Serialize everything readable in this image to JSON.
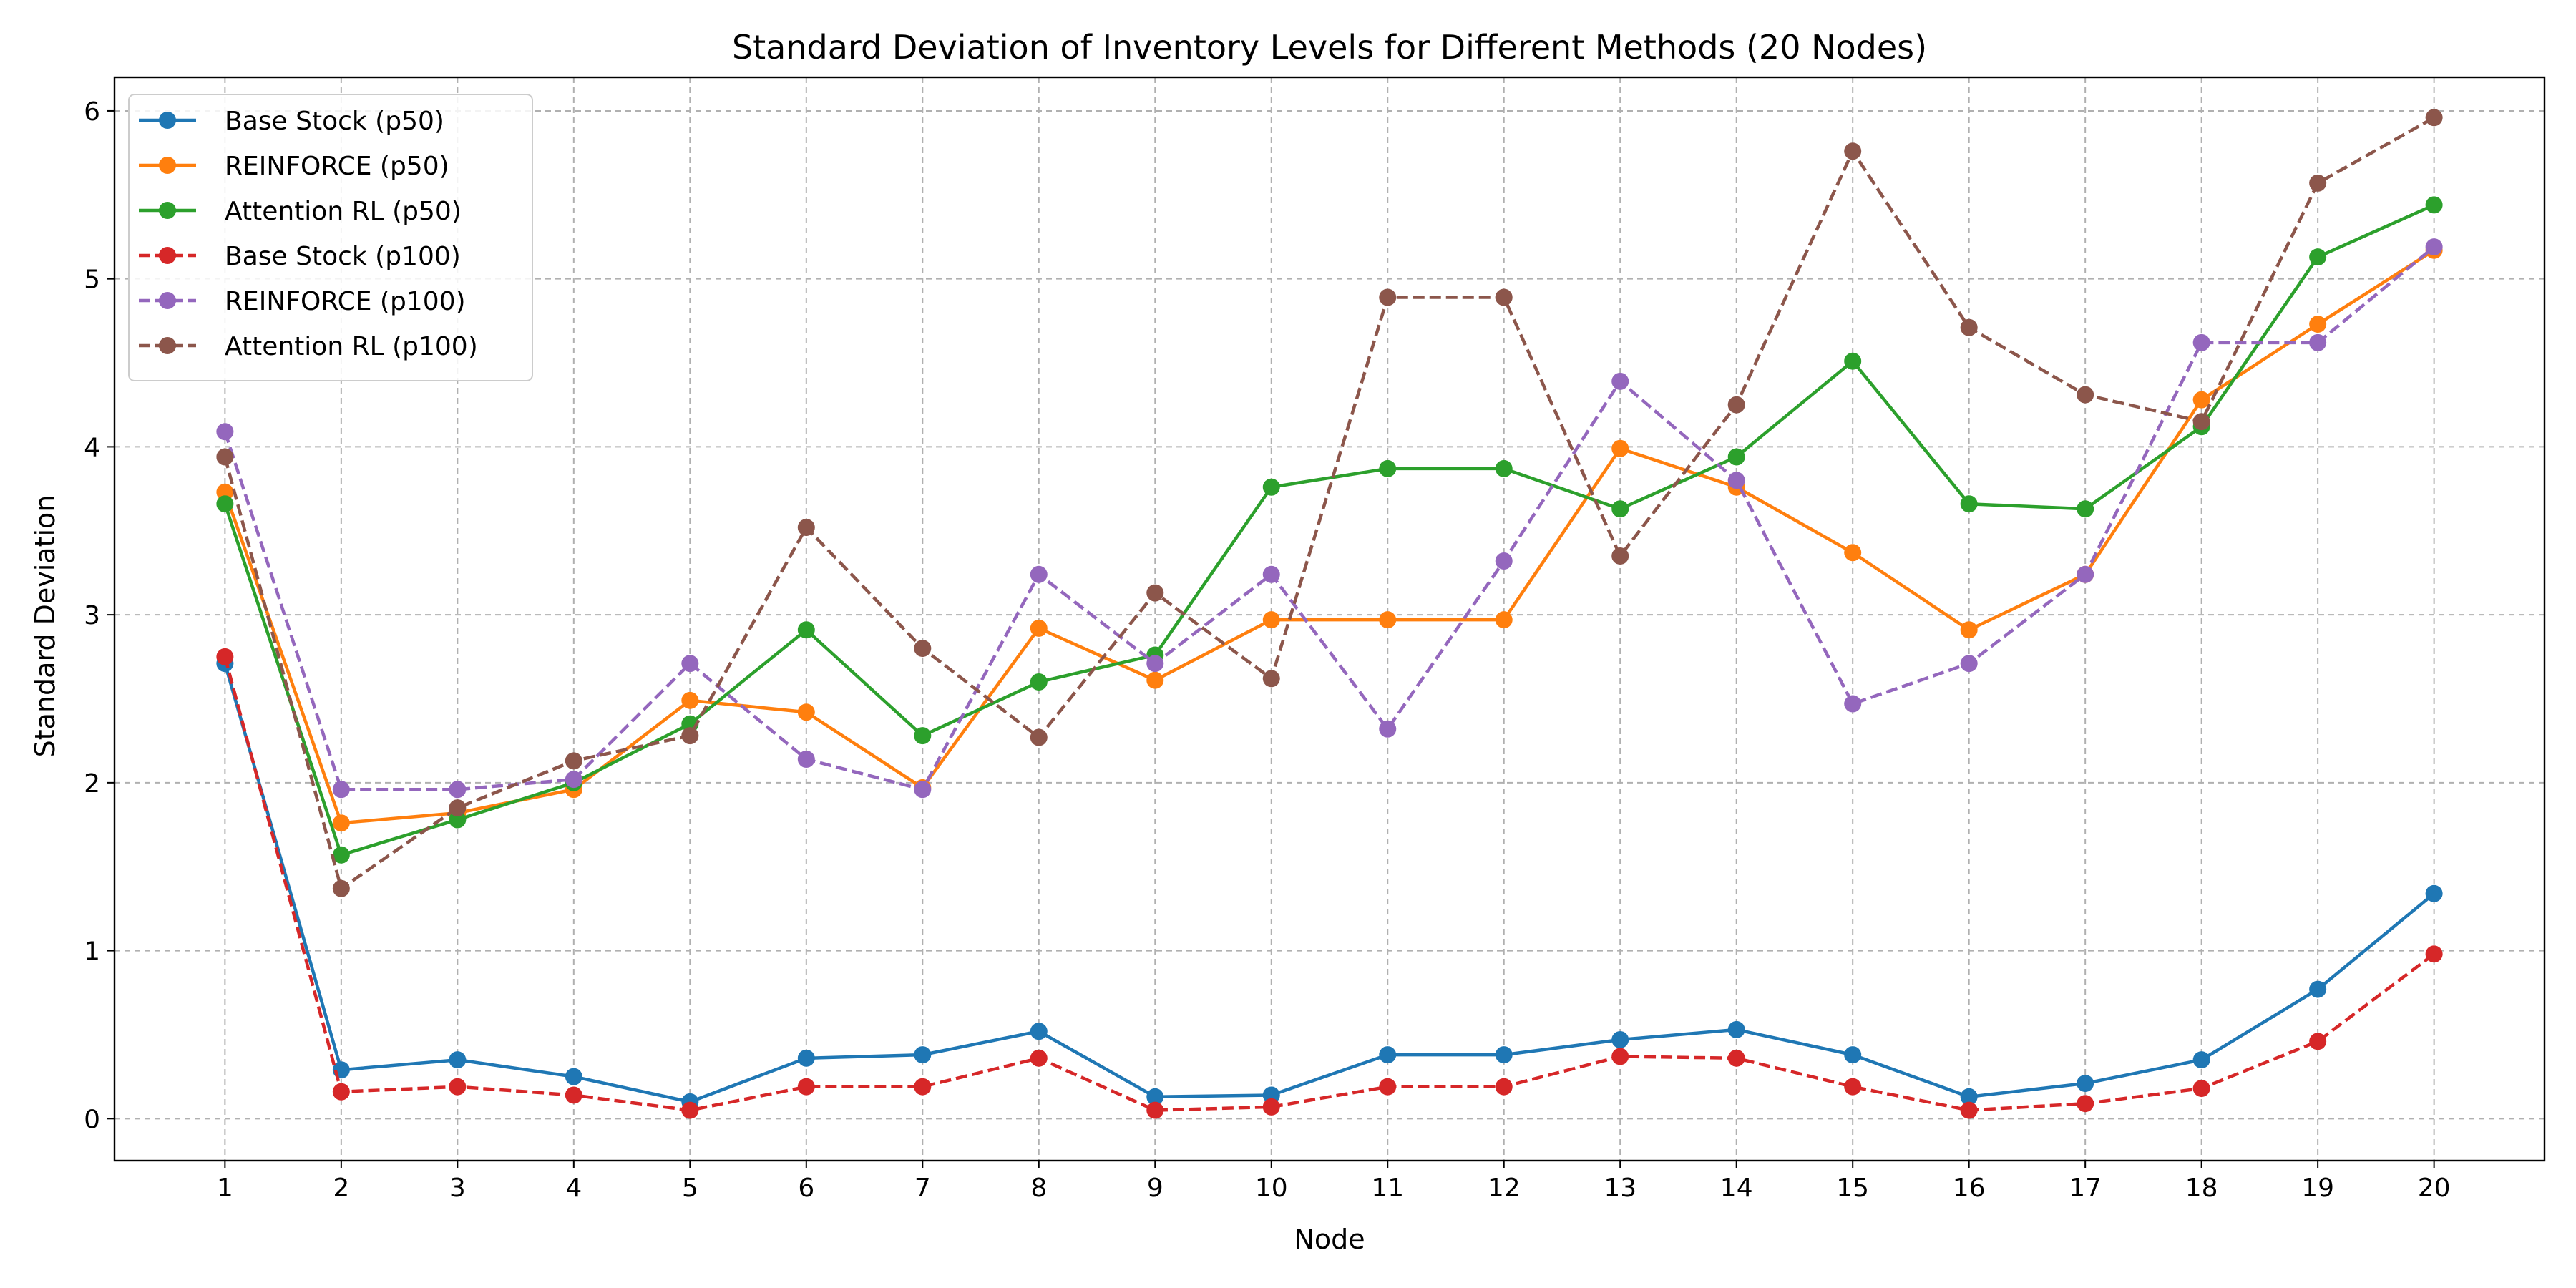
{
  "chart_data": {
    "type": "line",
    "title": "Standard Deviation of Inventory Levels for Different Methods (20 Nodes)",
    "xlabel": "Node",
    "ylabel": "Standard Deviation",
    "x": [
      1,
      2,
      3,
      4,
      5,
      6,
      7,
      8,
      9,
      10,
      11,
      12,
      13,
      14,
      15,
      16,
      17,
      18,
      19,
      20
    ],
    "xlim": [
      0.05,
      20.95
    ],
    "ylim": [
      -0.25,
      6.2
    ],
    "yticks": [
      0,
      1,
      2,
      3,
      4,
      5,
      6
    ],
    "grid": true,
    "legend_position": "top-left",
    "series": [
      {
        "name": "Base Stock (p50)",
        "color": "#1f77b4",
        "linestyle": "solid",
        "values": [
          2.71,
          0.29,
          0.35,
          0.25,
          0.1,
          0.36,
          0.38,
          0.52,
          0.13,
          0.14,
          0.38,
          0.38,
          0.47,
          0.53,
          0.38,
          0.13,
          0.21,
          0.35,
          0.77,
          1.34
        ]
      },
      {
        "name": "REINFORCE (p50)",
        "color": "#ff7f0e",
        "linestyle": "solid",
        "values": [
          3.73,
          1.76,
          1.82,
          1.96,
          2.49,
          2.42,
          1.97,
          2.92,
          2.61,
          2.97,
          2.97,
          2.97,
          3.99,
          3.76,
          3.37,
          2.91,
          3.24,
          4.28,
          4.73,
          5.17
        ]
      },
      {
        "name": "Attention RL (p50)",
        "color": "#2ca02c",
        "linestyle": "solid",
        "values": [
          3.66,
          1.57,
          1.78,
          2.0,
          2.35,
          2.91,
          2.28,
          2.6,
          2.76,
          3.76,
          3.87,
          3.87,
          3.63,
          3.94,
          4.51,
          3.66,
          3.63,
          4.12,
          5.13,
          5.44
        ]
      },
      {
        "name": "Base Stock (p100)",
        "color": "#d62728",
        "linestyle": "dashed",
        "values": [
          2.75,
          0.16,
          0.19,
          0.14,
          0.05,
          0.19,
          0.19,
          0.36,
          0.05,
          0.07,
          0.19,
          0.19,
          0.37,
          0.36,
          0.19,
          0.05,
          0.09,
          0.18,
          0.46,
          0.98
        ]
      },
      {
        "name": "REINFORCE (p100)",
        "color": "#9467bd",
        "linestyle": "dashed",
        "values": [
          4.09,
          1.96,
          1.96,
          2.02,
          2.71,
          2.14,
          1.96,
          3.24,
          2.71,
          3.24,
          2.32,
          3.32,
          4.39,
          3.8,
          2.47,
          2.71,
          3.24,
          4.62,
          4.62,
          5.19
        ]
      },
      {
        "name": "Attention RL (p100)",
        "color": "#8c564b",
        "linestyle": "dashed",
        "values": [
          3.94,
          1.37,
          1.85,
          2.13,
          2.28,
          3.52,
          2.8,
          2.27,
          3.13,
          2.62,
          4.89,
          4.89,
          3.35,
          4.25,
          5.76,
          4.71,
          4.31,
          4.15,
          5.57,
          5.96
        ]
      }
    ]
  }
}
